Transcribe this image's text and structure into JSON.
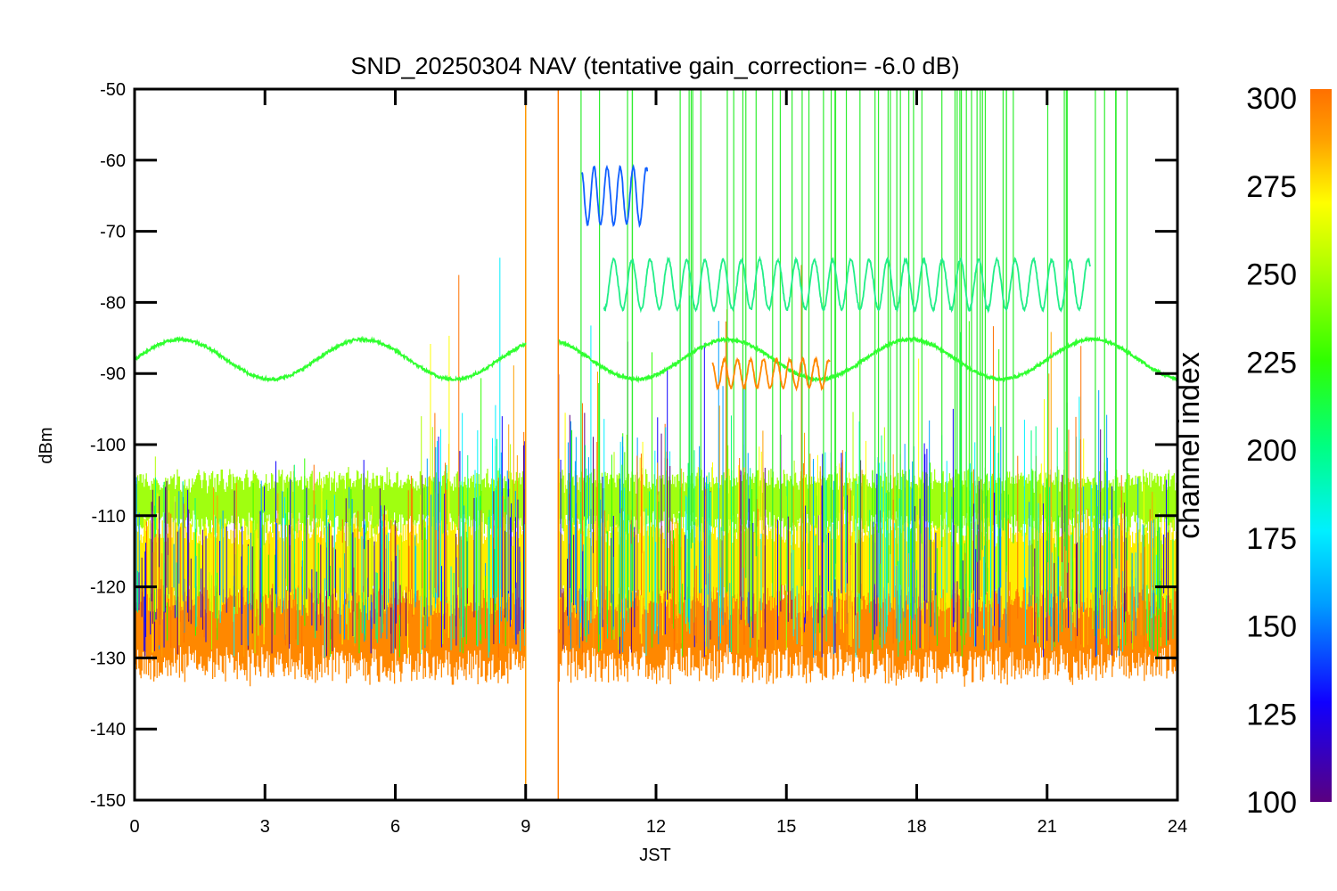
{
  "chart_data": {
    "type": "line",
    "title": "SND_20250304 NAV (tentative gain_correction= -6.0 dB)",
    "xlabel": "JST",
    "ylabel": "dBm",
    "xlim": [
      0,
      24
    ],
    "ylim": [
      -150,
      -50
    ],
    "x_ticks": [
      "0",
      "3",
      "6",
      "9",
      "12",
      "15",
      "18",
      "21",
      "24"
    ],
    "y_ticks": [
      "-50",
      "-60",
      "-70",
      "-80",
      "-90",
      "-100",
      "-110",
      "-120",
      "-130",
      "-140",
      "-150"
    ],
    "data_gap_jst": [
      9.0,
      9.75
    ],
    "grid": false,
    "colorbar": {
      "label": "channel index",
      "range": [
        100,
        300
      ],
      "ticks": [
        "300",
        "275",
        "250",
        "225",
        "200",
        "175",
        "150",
        "125",
        "100"
      ],
      "colormap": "rainbow",
      "stops": [
        "#5a0080",
        "#1000ff",
        "#00a0ff",
        "#00f0ff",
        "#00ff80",
        "#30ff00",
        "#b0ff00",
        "#ffff00",
        "#ffa000",
        "#ff7000"
      ]
    },
    "series": [
      {
        "color": "#ff8800",
        "band_center": -125,
        "band_halfwidth": 6,
        "description": "noise floor, channel ~295"
      },
      {
        "color": "#ffee00",
        "band_center": -117,
        "band_halfwidth": 5
      },
      {
        "color": "#a0ff10",
        "band_center": -108,
        "band_halfwidth": 3
      },
      {
        "color": "#30ff30",
        "sine_center": -88,
        "sine_amplitude": 2.8,
        "period_h": 4.2,
        "x_range": [
          0,
          24
        ]
      },
      {
        "color": "#22ee88",
        "sine_center": -77.5,
        "sine_amplitude": 3.5,
        "period_h": 0.42,
        "x_range": [
          10.8,
          22
        ]
      },
      {
        "color": "#1060ff",
        "sine_center": -65,
        "sine_amplitude": 4,
        "period_h": 0.3,
        "x_range": [
          10.3,
          11.8
        ]
      },
      {
        "color": "#ff8800",
        "sine_center": -90,
        "sine_amplitude": 2,
        "period_h": 0.3,
        "x_range": [
          13.3,
          16.0
        ]
      }
    ]
  }
}
